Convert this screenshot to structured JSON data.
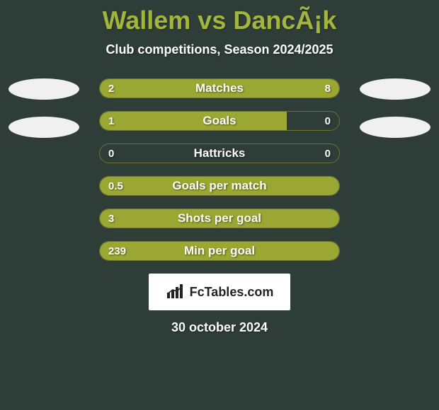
{
  "title": "Wallem vs DancÃ¡k",
  "subtitle": "Club competitions, Season 2024/2025",
  "date": "30 october 2024",
  "logo_text": "FcTables.com",
  "colors": {
    "background": "#2e3d37",
    "bar_fill": "#9aa833",
    "bar_border": "#6a7330",
    "title_color": "#a4b53e",
    "text_color": "#ffffff",
    "avatar_bg": "#f0f0f0",
    "logo_bg": "#ffffff"
  },
  "bars": [
    {
      "label": "Matches",
      "left_val": "2",
      "right_val": "8",
      "left_pct": 20,
      "right_pct": 80
    },
    {
      "label": "Goals",
      "left_val": "1",
      "right_val": "0",
      "left_pct": 78,
      "right_pct": 0
    },
    {
      "label": "Hattricks",
      "left_val": "0",
      "right_val": "0",
      "left_pct": 0,
      "right_pct": 0
    },
    {
      "label": "Goals per match",
      "left_val": "0.5",
      "right_val": "",
      "left_pct": 100,
      "right_pct": 0,
      "full": true
    },
    {
      "label": "Shots per goal",
      "left_val": "3",
      "right_val": "",
      "left_pct": 100,
      "right_pct": 0,
      "full": true
    },
    {
      "label": "Min per goal",
      "left_val": "239",
      "right_val": "",
      "left_pct": 100,
      "right_pct": 0,
      "full": true
    }
  ]
}
